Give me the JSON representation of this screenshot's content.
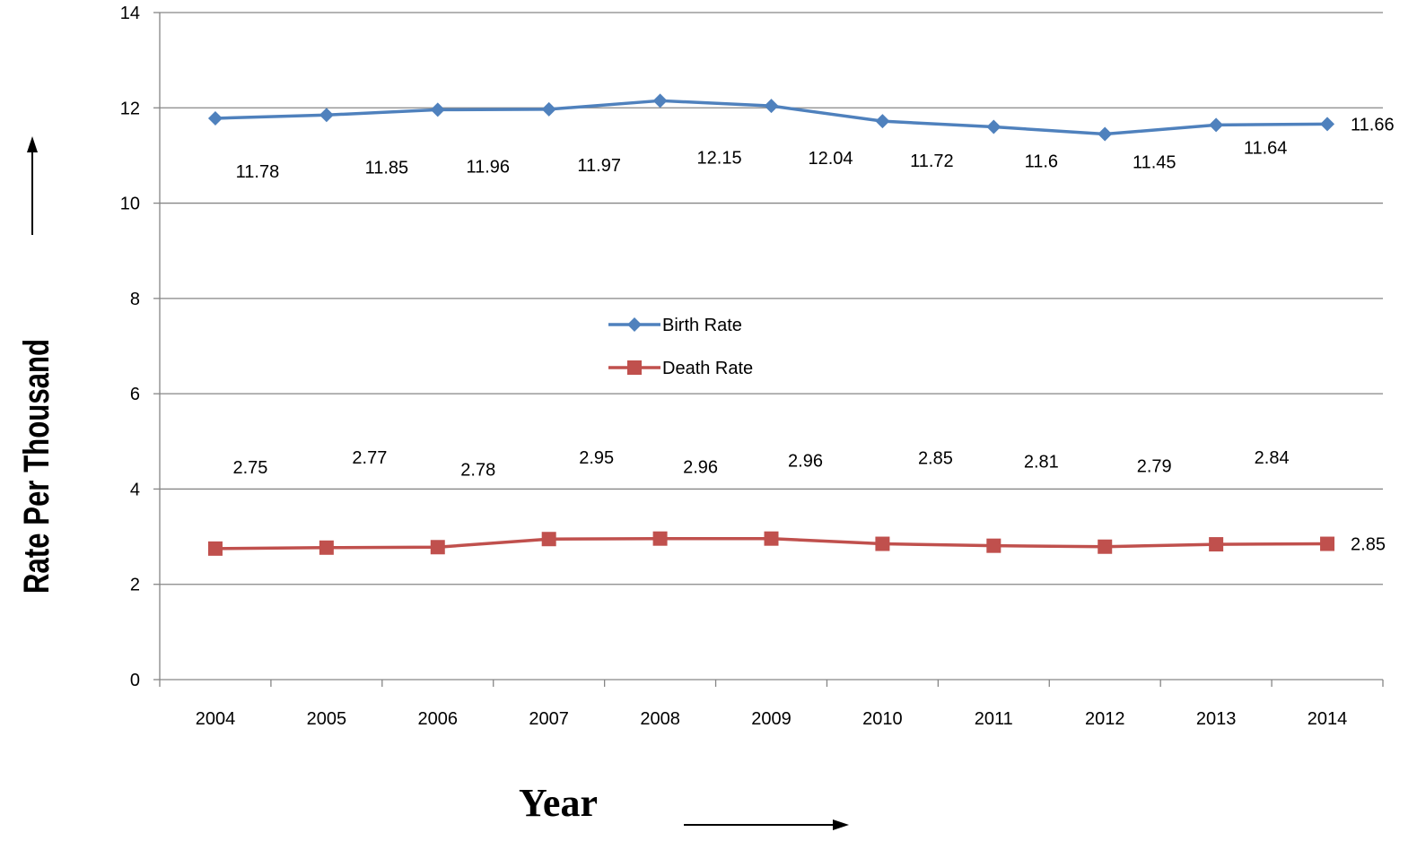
{
  "chart_data": {
    "type": "line",
    "title": "",
    "xlabel": "Year",
    "ylabel": "Rate Per Thousand",
    "categories": [
      "2004",
      "2005",
      "2006",
      "2007",
      "2008",
      "2009",
      "2010",
      "2011",
      "2012",
      "2013",
      "2014"
    ],
    "ylim": [
      0,
      14
    ],
    "yticks": [
      0,
      2,
      4,
      6,
      8,
      10,
      12,
      14
    ],
    "grid": true,
    "legend_position": "center",
    "series": [
      {
        "name": "Birth Rate",
        "color": "#4F81BD",
        "marker": "diamond",
        "values": [
          11.78,
          11.85,
          11.96,
          11.97,
          12.15,
          12.04,
          11.72,
          11.6,
          11.45,
          11.64,
          11.66
        ],
        "labels": [
          "11.78",
          "11.85",
          "11.96",
          "11.97",
          "12.15",
          "12.04",
          "11.72",
          "11.6",
          "11.45",
          "11.64",
          "11.66"
        ]
      },
      {
        "name": "Death Rate",
        "color": "#C0504D",
        "marker": "square",
        "values": [
          2.75,
          2.77,
          2.78,
          2.95,
          2.96,
          2.96,
          2.85,
          2.81,
          2.79,
          2.84,
          2.85
        ],
        "labels": [
          "2.75",
          "2.77",
          "2.78",
          "2.95",
          "2.96",
          "2.96",
          "2.85",
          "2.81",
          "2.79",
          "2.84",
          "2.85"
        ]
      }
    ]
  }
}
